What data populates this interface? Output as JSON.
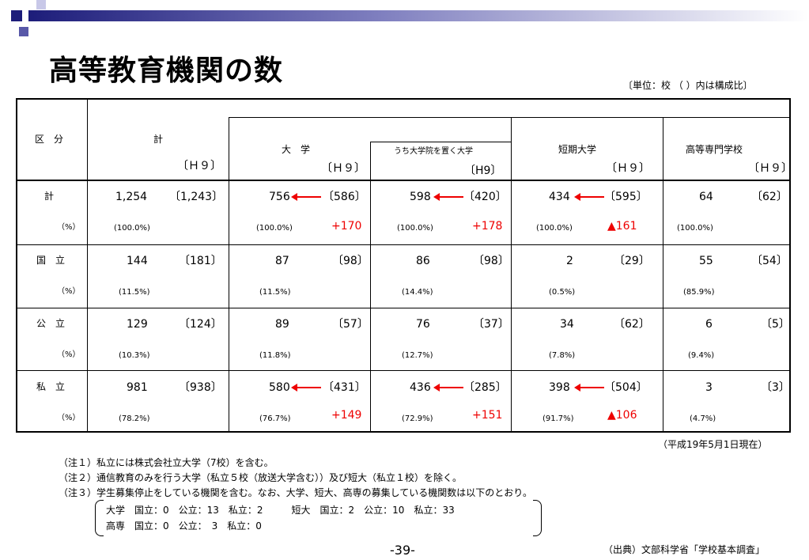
{
  "title": "高等教育機関の数",
  "unit_note": "〔単位：校 （ ）内は構成比〕",
  "header": {
    "category": "区　分",
    "total": "計",
    "univ": "大　学",
    "grad": "うち大学院を置く大学",
    "junior": "短期大学",
    "tech": "高等専門学校",
    "h9": "〔Ｈ９〕",
    "h9b": "〔H9〕"
  },
  "rows": [
    {
      "label": "計",
      "pct_label": "（%）",
      "total": "1,254",
      "total_h9": "〔1,243〕",
      "total_pct": "(100.0%)",
      "univ": "756",
      "univ_h9": "〔586〕",
      "univ_pct": "(100.0%)",
      "univ_diff": "+170",
      "grad": "598",
      "grad_h9": "〔420〕",
      "grad_pct": "(100.0%)",
      "grad_diff": "+178",
      "junior": "434",
      "junior_h9": "〔595〕",
      "junior_pct": "(100.0%)",
      "junior_diff": "▲161",
      "tech": "64",
      "tech_h9": "〔62〕",
      "tech_pct": "(100.0%)"
    },
    {
      "label": "国　立",
      "pct_label": "（%）",
      "total": "144",
      "total_h9": "〔181〕",
      "total_pct": "(11.5%)",
      "univ": "87",
      "univ_h9": "〔98〕",
      "univ_pct": "(11.5%)",
      "grad": "86",
      "grad_h9": "〔98〕",
      "grad_pct": "(14.4%)",
      "junior": "2",
      "junior_h9": "〔29〕",
      "junior_pct": "(0.5%)",
      "tech": "55",
      "tech_h9": "〔54〕",
      "tech_pct": "(85.9%)"
    },
    {
      "label": "公　立",
      "pct_label": "（%）",
      "total": "129",
      "total_h9": "〔124〕",
      "total_pct": "(10.3%)",
      "univ": "89",
      "univ_h9": "〔57〕",
      "univ_pct": "(11.8%)",
      "grad": "76",
      "grad_h9": "〔37〕",
      "grad_pct": "(12.7%)",
      "junior": "34",
      "junior_h9": "〔62〕",
      "junior_pct": "(7.8%)",
      "tech": "6",
      "tech_h9": "〔5〕",
      "tech_pct": "(9.4%)"
    },
    {
      "label": "私　立",
      "pct_label": "（%）",
      "total": "981",
      "total_h9": "〔938〕",
      "total_pct": "(78.2%)",
      "univ": "580",
      "univ_h9": "〔431〕",
      "univ_pct": "(76.7%)",
      "univ_diff": "+149",
      "grad": "436",
      "grad_h9": "〔285〕",
      "grad_pct": "(72.9%)",
      "grad_diff": "+151",
      "junior": "398",
      "junior_h9": "〔504〕",
      "junior_pct": "(91.7%)",
      "junior_diff": "▲106",
      "tech": "3",
      "tech_h9": "〔3〕",
      "tech_pct": "(4.7%)"
    }
  ],
  "as_of": "（平成19年5月1日現在）",
  "notes": [
    "（注１）私立には株式会社立大学（7校）を含む。",
    "（注２）通信教育のみを行う大学（私立５校（放送大学含む））及び短大（私立１校）を除く。",
    "（注３）学生募集停止をしている機関を含む。なお、大学、短大、高専の募集している機関数は以下のとおり。"
  ],
  "box_lines": [
    "大学　国立：0　公立：13　私立：2　　　短大　国立：2　公立：10　私立：33",
    "高専　国立：0　公立：　3　私立：0"
  ],
  "page": "-39-",
  "source": "（出典）文部科学省「学校基本調査」",
  "colors": {
    "accent_red": "#e00000",
    "bar_dark": "#1d1d7a"
  }
}
